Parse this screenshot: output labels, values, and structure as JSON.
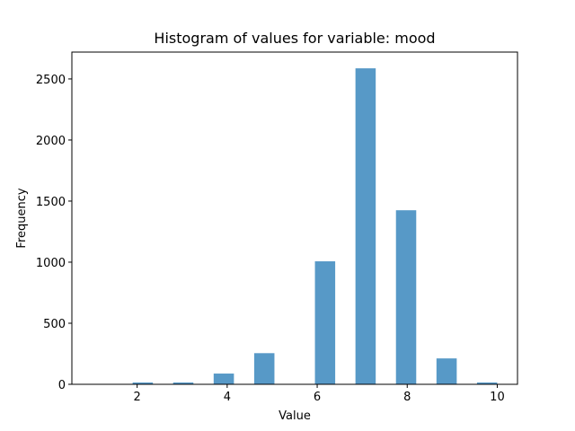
{
  "chart_data": {
    "type": "bar",
    "title": "Histogram of values for variable: mood",
    "xlabel": "Value",
    "ylabel": "Frequency",
    "xlim": [
      0.55,
      10.45
    ],
    "ylim": [
      0,
      2720
    ],
    "xticks": [
      2,
      4,
      6,
      8,
      10
    ],
    "yticks": [
      0,
      500,
      1000,
      1500,
      2000,
      2500
    ],
    "bar_color": "#5799c7",
    "bins": [
      {
        "x0": 1.9,
        "x1": 2.35,
        "value": 15
      },
      {
        "x0": 2.8,
        "x1": 3.25,
        "value": 15
      },
      {
        "x0": 3.7,
        "x1": 4.15,
        "value": 88
      },
      {
        "x0": 4.6,
        "x1": 5.05,
        "value": 255
      },
      {
        "x0": 5.95,
        "x1": 6.4,
        "value": 1007
      },
      {
        "x0": 6.85,
        "x1": 7.3,
        "value": 2587
      },
      {
        "x0": 7.75,
        "x1": 8.2,
        "value": 1425
      },
      {
        "x0": 8.65,
        "x1": 9.1,
        "value": 212
      },
      {
        "x0": 9.55,
        "x1": 10.0,
        "value": 15
      }
    ]
  }
}
